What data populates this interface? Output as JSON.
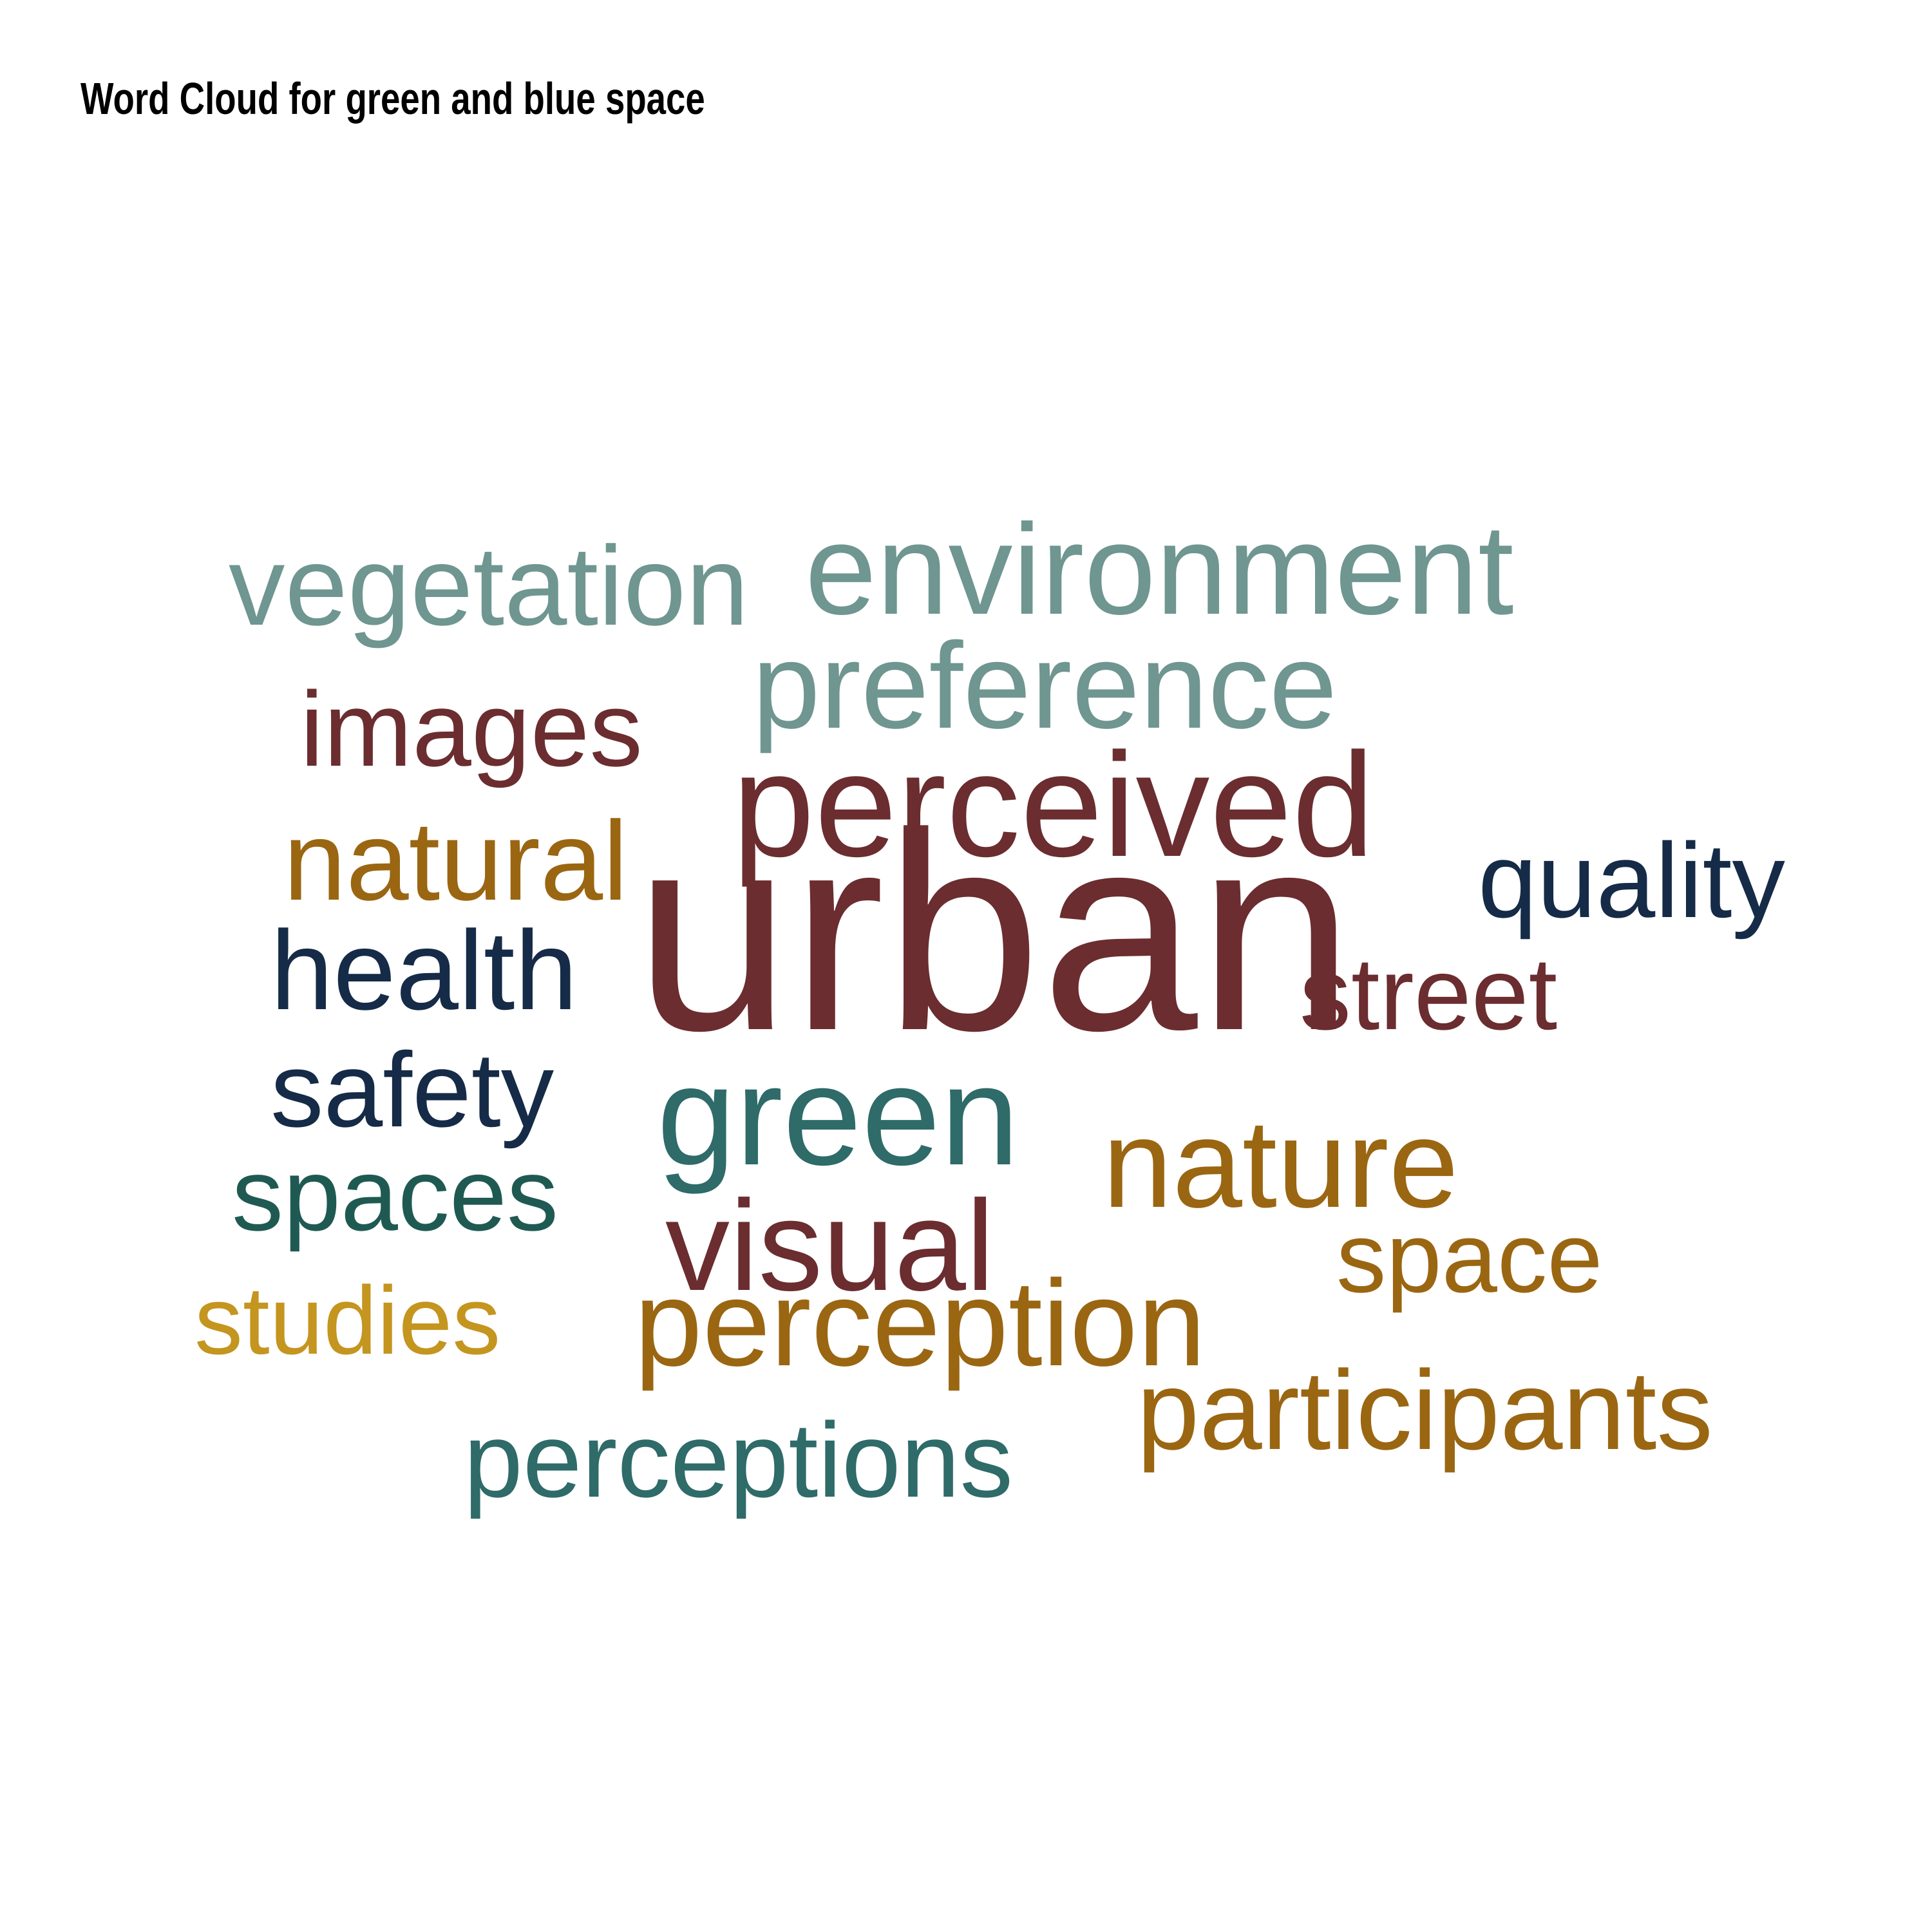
{
  "title": "Word Cloud for green and blue space",
  "words": [
    {
      "key": "urban",
      "text": "urban",
      "color": "#6b2d2f"
    },
    {
      "key": "perceived",
      "text": "perceived",
      "color": "#6b2d2f"
    },
    {
      "key": "green",
      "text": "green",
      "color": "#2e6b69"
    },
    {
      "key": "environment",
      "text": "environment",
      "color": "#6f9690"
    },
    {
      "key": "visual",
      "text": "visual",
      "color": "#6b2d2f"
    },
    {
      "key": "nature",
      "text": "nature",
      "color": "#9a6612"
    },
    {
      "key": "preference",
      "text": "preference",
      "color": "#6f9690"
    },
    {
      "key": "perception",
      "text": "perception",
      "color": "#9a6612"
    },
    {
      "key": "vegetation",
      "text": "vegetation",
      "color": "#6f9690"
    },
    {
      "key": "natural",
      "text": "natural",
      "color": "#9a6612"
    },
    {
      "key": "health",
      "text": "health",
      "color": "#152b47"
    },
    {
      "key": "participants",
      "text": "participants",
      "color": "#9a6612"
    },
    {
      "key": "images",
      "text": "images",
      "color": "#6b2d2f"
    },
    {
      "key": "safety",
      "text": "safety",
      "color": "#152b47"
    },
    {
      "key": "quality",
      "text": "quality",
      "color": "#152b47"
    },
    {
      "key": "perceptions",
      "text": "perceptions",
      "color": "#2e6b69"
    },
    {
      "key": "street",
      "text": "street",
      "color": "#6b2d2f"
    },
    {
      "key": "spaces",
      "text": "spaces",
      "color": "#1f5a52"
    },
    {
      "key": "space",
      "text": "space",
      "color": "#9a6612"
    },
    {
      "key": "studies",
      "text": "studies",
      "color": "#c4951f"
    }
  ]
}
